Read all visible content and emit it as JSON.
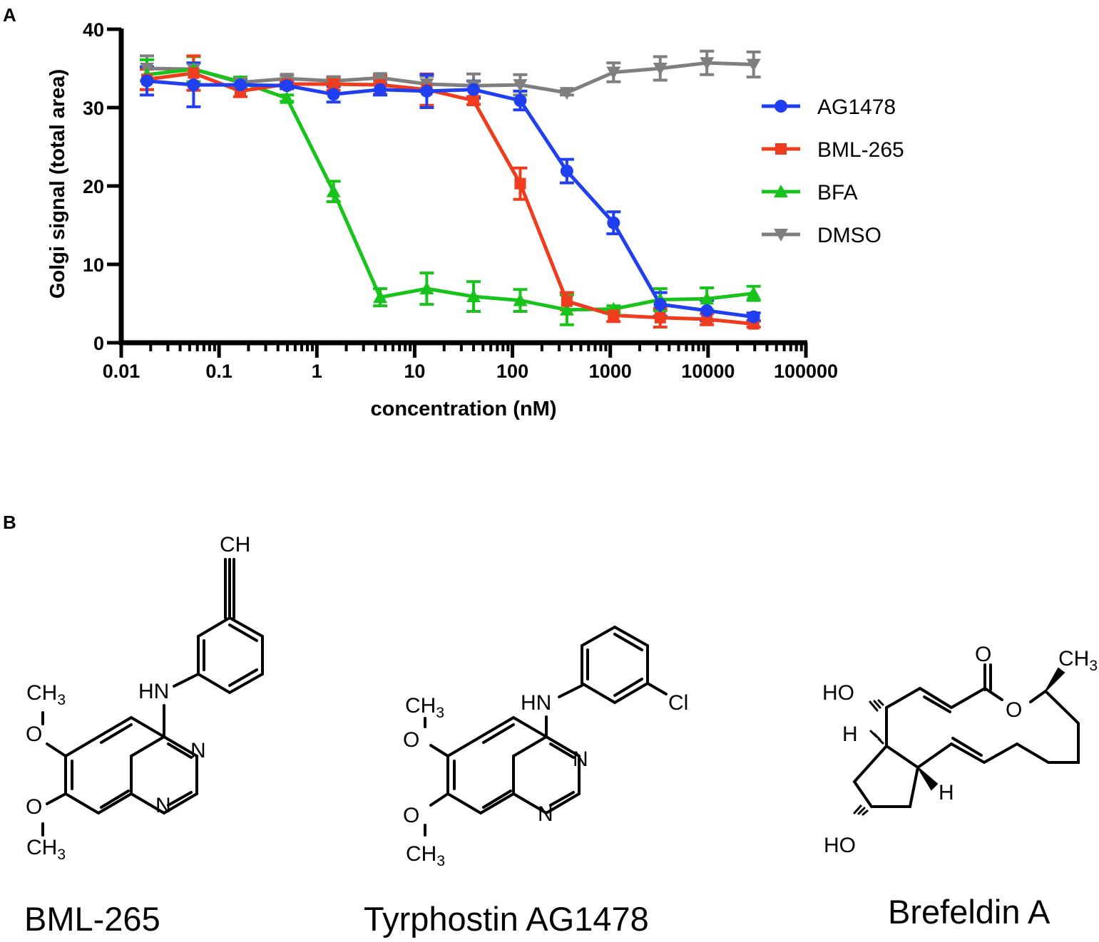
{
  "panels": {
    "a": "A",
    "b": "B"
  },
  "chart_data": {
    "type": "line",
    "xscale": "log",
    "xlim": [
      0.01,
      100000
    ],
    "ylim": [
      0,
      40
    ],
    "xlabel": "concentration (nM)",
    "ylabel": "Golgi signal (total area)",
    "x_tick_labels": [
      "0.01",
      "0.1",
      "1",
      "10",
      "100",
      "1000",
      "10000",
      "100000"
    ],
    "y_tick_labels": [
      "0",
      "10",
      "20",
      "30",
      "40"
    ],
    "legend_position": "right",
    "series": [
      {
        "name": "AG1478",
        "color": "#1f3ff0",
        "marker": "circle",
        "x": [
          0.0183,
          0.0549,
          0.165,
          0.494,
          1.48,
          4.44,
          13.3,
          40.0,
          120,
          360,
          1080,
          3240,
          9720,
          29200
        ],
        "y": [
          33.4,
          32.9,
          32.9,
          32.8,
          31.7,
          32.3,
          32.1,
          32.3,
          30.9,
          21.9,
          15.3,
          4.9,
          4.1,
          3.3
        ],
        "err": [
          1.8,
          2.8,
          0.5,
          0.4,
          1.0,
          0.7,
          2.1,
          1.1,
          1.2,
          1.5,
          1.4,
          1.5,
          1.3,
          0.5
        ]
      },
      {
        "name": "BML-265",
        "color": "#f03c1e",
        "marker": "square",
        "x": [
          0.0183,
          0.0549,
          0.165,
          0.494,
          1.48,
          4.44,
          13.3,
          40.0,
          120,
          360,
          1080,
          3240,
          9720,
          29200
        ],
        "y": [
          33.6,
          34.4,
          32.1,
          33.0,
          33.0,
          32.9,
          32.3,
          30.9,
          20.3,
          5.3,
          3.5,
          3.2,
          3.0,
          2.4
        ],
        "err": [
          1.3,
          2.2,
          0.7,
          0.5,
          0.8,
          1.2,
          2.0,
          0.5,
          2.0,
          1.1,
          0.8,
          1.2,
          0.7,
          0.4
        ]
      },
      {
        "name": "BFA",
        "color": "#18c41c",
        "marker": "triangle",
        "x": [
          0.0183,
          0.0549,
          0.165,
          0.494,
          1.48,
          4.44,
          13.3,
          40.0,
          120,
          360,
          1080,
          3240,
          9720,
          29200
        ],
        "y": [
          34.2,
          34.9,
          33.3,
          31.2,
          19.3,
          5.8,
          6.9,
          5.9,
          5.4,
          4.2,
          4.3,
          5.5,
          5.6,
          6.3
        ],
        "err": [
          1.9,
          1.6,
          0.6,
          0.4,
          1.3,
          1.1,
          2.0,
          1.9,
          1.4,
          1.9,
          0.4,
          1.4,
          1.4,
          0.9
        ]
      },
      {
        "name": "DMSO",
        "color": "#7f7f7f",
        "marker": "triangle-down",
        "x": [
          0.0183,
          0.0549,
          0.165,
          0.494,
          1.48,
          4.44,
          13.3,
          40.0,
          120,
          360,
          1080,
          3240,
          9720,
          29200
        ],
        "y": [
          35.0,
          34.9,
          33.2,
          33.7,
          33.4,
          33.8,
          33.0,
          32.8,
          32.9,
          31.9,
          34.5,
          35.0,
          35.7,
          35.5
        ],
        "err": [
          1.6,
          1.6,
          0.5,
          0.4,
          0.5,
          0.4,
          1.0,
          1.5,
          1.3,
          0.3,
          1.2,
          1.5,
          1.5,
          1.6
        ]
      }
    ]
  },
  "compounds": {
    "bml265": {
      "name": "BML-265",
      "ch": "CH",
      "ch3": "CH",
      "three": "3",
      "o": "O",
      "hn": "HN",
      "n": "N"
    },
    "ag1478": {
      "name": "Tyrphostin AG1478",
      "ch3": "CH",
      "three": "3",
      "o": "O",
      "hn": "HN",
      "n": "N",
      "cl": "Cl"
    },
    "brefeldin": {
      "name": "Brefeldin A",
      "o": "O",
      "ho": "HO",
      "h": "H",
      "ch3": "CH",
      "three": "3"
    }
  }
}
